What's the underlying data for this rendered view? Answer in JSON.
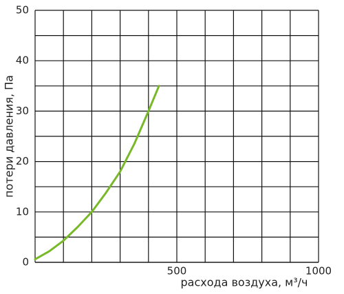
{
  "chart_data": {
    "type": "line",
    "x_label": "расхода воздуха, м³/ч",
    "y_label": "потери давления, Па",
    "x": [
      0,
      50,
      100,
      150,
      200,
      250,
      300,
      350,
      400,
      437
    ],
    "series": [
      {
        "color": "#78b829",
        "values": [
          0.6,
          2.2,
          4.3,
          7,
          10,
          13.8,
          18,
          23.5,
          30,
          35
        ]
      }
    ],
    "xlim": [
      0,
      1000
    ],
    "ylim": [
      0,
      50
    ],
    "xticks": [
      500,
      1000
    ],
    "yticks": [
      0,
      10,
      20,
      30,
      40,
      50
    ],
    "xminorticks": [
      100,
      200,
      300,
      400,
      600,
      700,
      800,
      900
    ],
    "yminorticks": [
      5,
      15,
      25,
      35,
      45
    ],
    "grid": true
  }
}
